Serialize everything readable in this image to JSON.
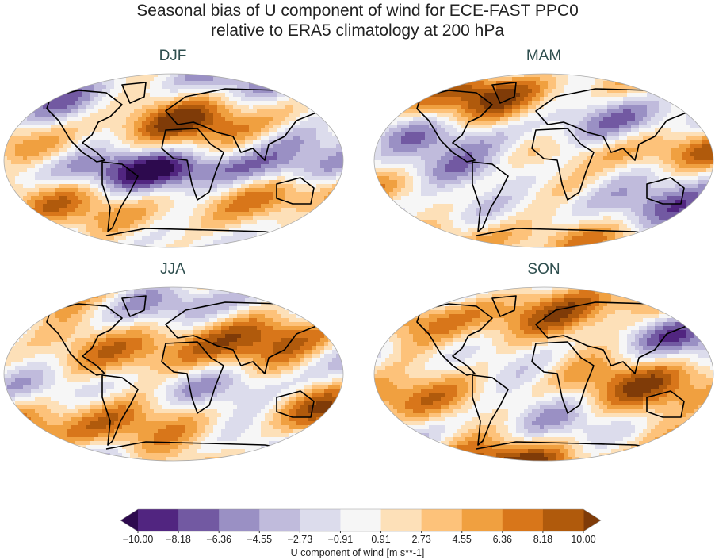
{
  "title": {
    "line1": "Seasonal bias of U component of wind for ECE-FAST PPC0",
    "line2": "relative to ERA5 climatology at 200 hPa"
  },
  "panels": [
    {
      "label": "DJF"
    },
    {
      "label": "MAM"
    },
    {
      "label": "JJA"
    },
    {
      "label": "SON"
    }
  ],
  "colorbar": {
    "label": "U component of wind [m s**-1]",
    "ticks": [
      "−10.00",
      "−8.18",
      "−6.36",
      "−4.55",
      "−2.73",
      "−0.91",
      "0.91",
      "2.73",
      "4.55",
      "6.36",
      "8.18",
      "10.00"
    ],
    "levels": [
      -10,
      -8.18,
      -6.36,
      -4.55,
      -2.73,
      -0.91,
      0.91,
      2.73,
      4.55,
      6.36,
      8.18,
      10
    ],
    "colors": [
      "#512580",
      "#7259a2",
      "#9a90c4",
      "#c0bbdc",
      "#dcdcec",
      "#f6f6f6",
      "#fde0b8",
      "#fdc27a",
      "#f0a040",
      "#d8761a",
      "#b05a0c"
    ],
    "extend_low_color": "#2d0a4e",
    "extend_high_color": "#7f3b08",
    "extend": "both"
  }
}
